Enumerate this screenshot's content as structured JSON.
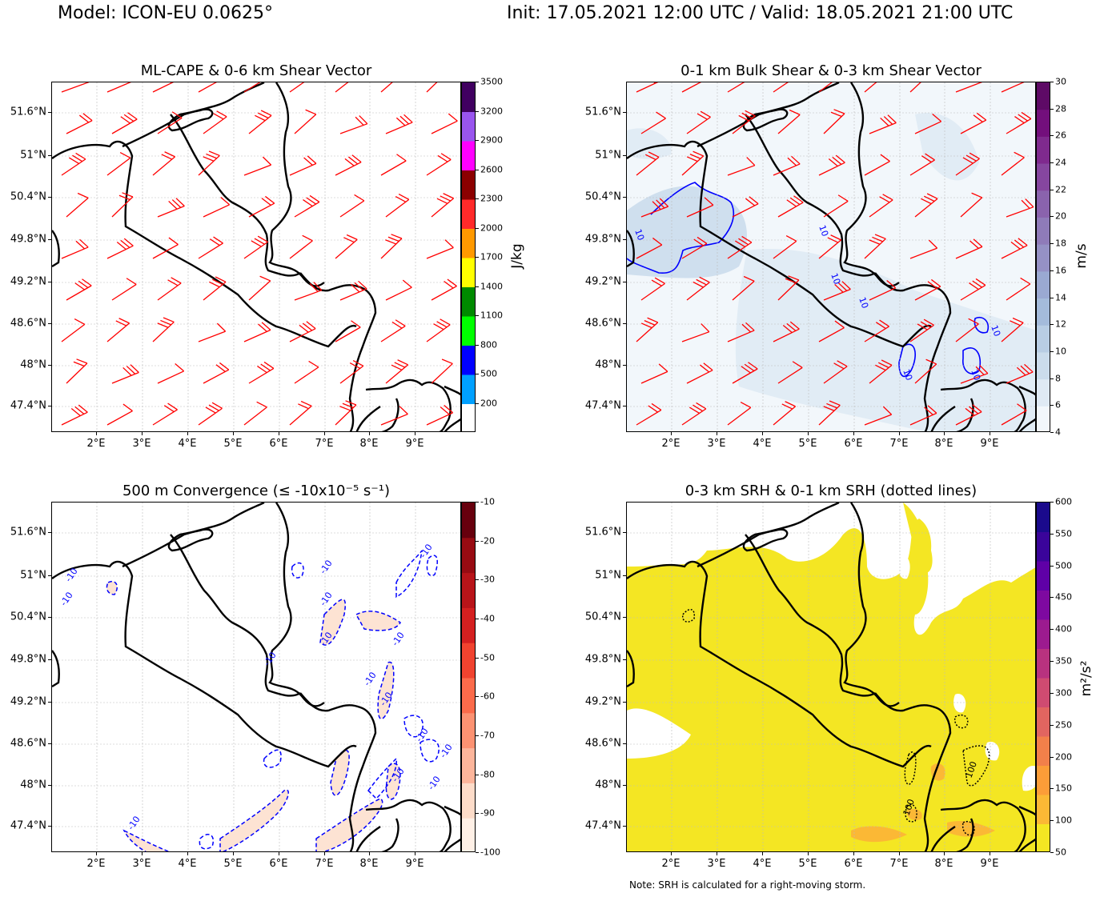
{
  "header": {
    "model": "Model: ICON-EU 0.0625°",
    "valid": "Init: 17.05.2021 12:00 UTC / Valid: 18.05.2021 21:00 UTC"
  },
  "map_axes": {
    "lat_labels": [
      "51.6°N",
      "51°N",
      "50.4°N",
      "49.8°N",
      "49.2°N",
      "48.6°N",
      "48°N",
      "47.4°N"
    ],
    "lon_labels": [
      "2°E",
      "3°E",
      "4°E",
      "5°E",
      "6°E",
      "7°E",
      "8°E",
      "9°E"
    ]
  },
  "panels": {
    "cape": {
      "title": "ML-CAPE & 0-6 km Shear Vector",
      "colorbar_label": "J/kg",
      "ticks": [
        "3500",
        "3200",
        "2900",
        "2600",
        "2300",
        "2000",
        "1700",
        "1400",
        "1100",
        "800",
        "500",
        "200"
      ],
      "colors": [
        "#ffffff",
        "#00a0ff",
        "#0000ff",
        "#00ff00",
        "#008a00",
        "#ffff00",
        "#ff9900",
        "#ff2a2a",
        "#8b0000",
        "#ff00ff",
        "#9955ee",
        "#400060"
      ]
    },
    "shear": {
      "title": "0-1 km Bulk Shear & 0-3 km Shear Vector",
      "colorbar_label": "m/s",
      "ticks": [
        "30",
        "28",
        "26",
        "24",
        "22",
        "20",
        "18",
        "16",
        "14",
        "12",
        "10",
        "8",
        "6",
        "4"
      ],
      "colors": [
        "#f2f7fb",
        "#dfeaf4",
        "#cbdcec",
        "#b8cde4",
        "#a4bbdb",
        "#9aa9d2",
        "#9591c5",
        "#8f7bb9",
        "#8a63ad",
        "#86469f",
        "#7f2a8e",
        "#730f7c",
        "#5e0a66"
      ],
      "contour_label": "10"
    },
    "conv": {
      "title": "500 m Convergence (≤ -10x10⁻⁵ s⁻¹)",
      "ticks": [
        "-10",
        "-20",
        "-30",
        "-40",
        "-50",
        "-60",
        "-70",
        "-80",
        "-90",
        "-100"
      ],
      "colors": [
        "#fff0e6",
        "#fddcc9",
        "#fcb59b",
        "#fc9272",
        "#fb6b4b",
        "#f0432f",
        "#d42020",
        "#b81419",
        "#980b12",
        "#67000d"
      ],
      "contour_label": "-10"
    },
    "srh": {
      "title": "0-3 km SRH & 0-1 km SRH (dotted lines)",
      "colorbar_label": "m²/s²",
      "ticks": [
        "600",
        "550",
        "500",
        "450",
        "400",
        "350",
        "300",
        "250",
        "200",
        "150",
        "100",
        "50"
      ],
      "colors": [
        "#f4e623",
        "#fbb835",
        "#fc9d38",
        "#f2804a",
        "#e16560",
        "#cf4b71",
        "#b8327f",
        "#9c1b8f",
        "#7e09a0",
        "#5f00a7",
        "#3a049a",
        "#1a0a8c"
      ],
      "contour_label": "100"
    }
  },
  "note": "Note: SRH is calculated for a right-moving storm."
}
